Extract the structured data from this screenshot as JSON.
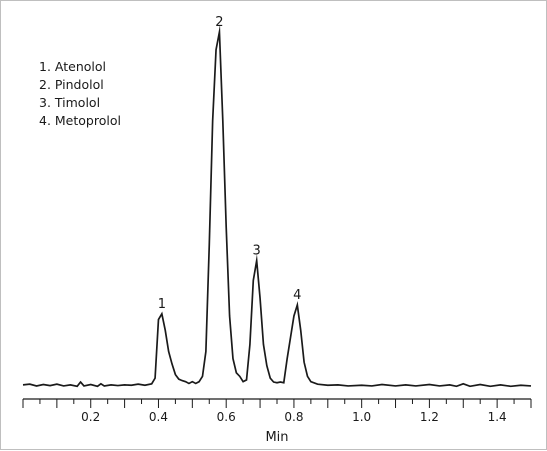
{
  "chart_data": {
    "type": "line",
    "xlabel": "Min",
    "ylabel": "",
    "xlim": [
      0.0,
      1.5
    ],
    "ylim": [
      0,
      100
    ],
    "x_ticks": [
      {
        "value": 0.2,
        "label": "0.2"
      },
      {
        "value": 0.4,
        "label": "0.4"
      },
      {
        "value": 0.6,
        "label": "0.6"
      },
      {
        "value": 0.8,
        "label": "0.8"
      },
      {
        "value": 1.0,
        "label": "1.0"
      },
      {
        "value": 1.2,
        "label": "1.2"
      },
      {
        "value": 1.4,
        "label": "1.4"
      }
    ],
    "minor_tick_step": 0.05,
    "grid": false,
    "legend_position": "top-left",
    "legend": [
      "1. Atenolol",
      "2. Pindolol",
      "3. Timolol",
      "4. Metoprolol"
    ],
    "peaks": [
      {
        "label": "1",
        "x": 0.41,
        "y": 20.6
      },
      {
        "label": "2",
        "x": 0.58,
        "y": 100
      },
      {
        "label": "3",
        "x": 0.69,
        "y": 35.6
      },
      {
        "label": "4",
        "x": 0.81,
        "y": 23.1
      }
    ],
    "series": [
      {
        "color": "#1a1a1a",
        "points": [
          [
            0.0,
            0.6
          ],
          [
            0.02,
            0.8
          ],
          [
            0.04,
            0.3
          ],
          [
            0.06,
            0.7
          ],
          [
            0.08,
            0.4
          ],
          [
            0.1,
            0.8
          ],
          [
            0.12,
            0.3
          ],
          [
            0.14,
            0.6
          ],
          [
            0.16,
            0.2
          ],
          [
            0.17,
            1.4
          ],
          [
            0.18,
            0.3
          ],
          [
            0.2,
            0.7
          ],
          [
            0.22,
            0.2
          ],
          [
            0.23,
            0.9
          ],
          [
            0.24,
            0.3
          ],
          [
            0.26,
            0.6
          ],
          [
            0.28,
            0.4
          ],
          [
            0.3,
            0.6
          ],
          [
            0.32,
            0.5
          ],
          [
            0.34,
            0.8
          ],
          [
            0.36,
            0.5
          ],
          [
            0.38,
            0.9
          ],
          [
            0.39,
            2.5
          ],
          [
            0.4,
            19.0
          ],
          [
            0.41,
            20.6
          ],
          [
            0.42,
            16.0
          ],
          [
            0.43,
            10.0
          ],
          [
            0.44,
            6.5
          ],
          [
            0.45,
            3.5
          ],
          [
            0.46,
            2.2
          ],
          [
            0.47,
            1.8
          ],
          [
            0.48,
            1.5
          ],
          [
            0.49,
            1.0
          ],
          [
            0.5,
            1.5
          ],
          [
            0.51,
            1.0
          ],
          [
            0.52,
            1.5
          ],
          [
            0.53,
            3.0
          ],
          [
            0.54,
            10.0
          ],
          [
            0.55,
            40.0
          ],
          [
            0.56,
            75.0
          ],
          [
            0.57,
            95.0
          ],
          [
            0.58,
            100.0
          ],
          [
            0.59,
            75.0
          ],
          [
            0.6,
            45.0
          ],
          [
            0.61,
            20.0
          ],
          [
            0.62,
            8.0
          ],
          [
            0.63,
            4.0
          ],
          [
            0.64,
            3.0
          ],
          [
            0.65,
            1.5
          ],
          [
            0.66,
            2.0
          ],
          [
            0.67,
            12.0
          ],
          [
            0.68,
            30.0
          ],
          [
            0.69,
            35.6
          ],
          [
            0.7,
            25.0
          ],
          [
            0.71,
            12.0
          ],
          [
            0.72,
            6.0
          ],
          [
            0.73,
            2.5
          ],
          [
            0.74,
            1.4
          ],
          [
            0.75,
            1.2
          ],
          [
            0.76,
            1.4
          ],
          [
            0.77,
            1.2
          ],
          [
            0.78,
            8.0
          ],
          [
            0.79,
            14.0
          ],
          [
            0.8,
            20.0
          ],
          [
            0.81,
            23.1
          ],
          [
            0.82,
            16.0
          ],
          [
            0.83,
            7.0
          ],
          [
            0.84,
            3.0
          ],
          [
            0.85,
            1.5
          ],
          [
            0.87,
            0.8
          ],
          [
            0.9,
            0.5
          ],
          [
            0.93,
            0.6
          ],
          [
            0.96,
            0.3
          ],
          [
            1.0,
            0.5
          ],
          [
            1.03,
            0.3
          ],
          [
            1.06,
            0.7
          ],
          [
            1.1,
            0.3
          ],
          [
            1.13,
            0.6
          ],
          [
            1.16,
            0.3
          ],
          [
            1.2,
            0.7
          ],
          [
            1.23,
            0.3
          ],
          [
            1.26,
            0.6
          ],
          [
            1.28,
            0.2
          ],
          [
            1.3,
            0.9
          ],
          [
            1.32,
            0.2
          ],
          [
            1.35,
            0.7
          ],
          [
            1.38,
            0.2
          ],
          [
            1.41,
            0.6
          ],
          [
            1.44,
            0.2
          ],
          [
            1.47,
            0.5
          ],
          [
            1.5,
            0.3
          ]
        ]
      }
    ]
  }
}
